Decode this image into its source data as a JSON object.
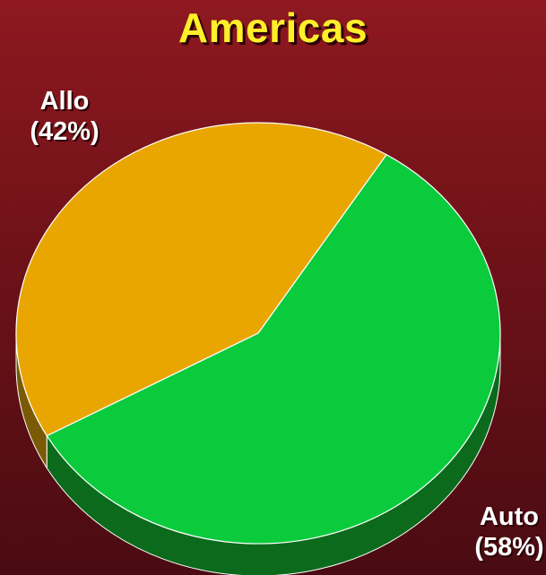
{
  "chart_data": {
    "type": "pie",
    "title": "Americas",
    "three_d": true,
    "legend": "none",
    "slices": [
      {
        "label": "Allo",
        "percent_label": "(42%)",
        "value": 42,
        "color": "#eaa600",
        "side_color": "#7a5a05"
      },
      {
        "label": "Auto",
        "percent_label": "(58%)",
        "value": 58,
        "color": "#0acb3c",
        "side_color": "#0b6a1c"
      }
    ]
  },
  "colors": {
    "background_top": "#8e1820",
    "background_bottom": "#4a0b12",
    "title": "#ffef2a",
    "labels": "#ffffff"
  }
}
